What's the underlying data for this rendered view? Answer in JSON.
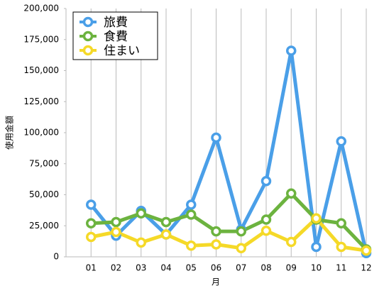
{
  "chart_data": {
    "type": "line",
    "x_label": "月",
    "y_label": "使用金額",
    "categories": [
      "01",
      "02",
      "03",
      "04",
      "05",
      "06",
      "07",
      "08",
      "09",
      "10",
      "11",
      "12"
    ],
    "series": [
      {
        "name": "旅費",
        "color": "#4a9fe8",
        "values": [
          42000,
          17000,
          37000,
          18000,
          42000,
          96000,
          22000,
          61000,
          166000,
          8000,
          93000,
          3000
        ]
      },
      {
        "name": "食費",
        "color": "#6cb33f",
        "values": [
          27000,
          28000,
          35000,
          28000,
          34000,
          20500,
          20500,
          30000,
          51000,
          30000,
          27000,
          6000
        ]
      },
      {
        "name": "住まい",
        "color": "#f5d928",
        "values": [
          16000,
          20000,
          11500,
          18000,
          9000,
          10000,
          7000,
          21000,
          12000,
          31000,
          8000,
          5000
        ]
      }
    ],
    "ylim": [
      0,
      200000
    ],
    "yticks": [
      0,
      {
        "value": 25000,
        "label": "25,000"
      },
      {
        "value": 50000,
        "label": "50,000"
      },
      {
        "value": 75000,
        "label": "75,000"
      },
      {
        "value": 100000,
        "label": "100,000"
      },
      {
        "value": 125000,
        "label": "125,000"
      },
      {
        "value": 150000,
        "label": "150,000"
      },
      {
        "value": 175000,
        "label": "175,000"
      },
      {
        "value": 200000,
        "label": "200,000"
      }
    ],
    "legend": "upper-left"
  }
}
